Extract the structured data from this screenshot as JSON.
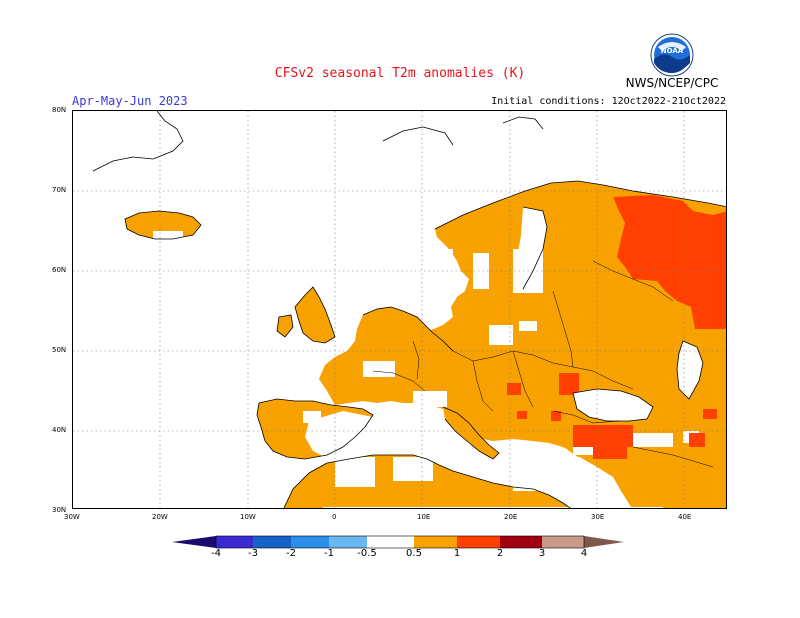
{
  "header": {
    "title": "CFSv2 seasonal T2m anomalies (K)",
    "period": "Apr-May-Jun 2023",
    "initial_conditions": "Initial conditions: 12Oct2022-21Oct2022",
    "agency": "NWS/NCEP/CPC",
    "logo_text": "NOAA"
  },
  "map": {
    "lat_labels": [
      "80N",
      "70N",
      "60N",
      "50N",
      "40N",
      "30N"
    ],
    "lon_labels": [
      "30W",
      "20W",
      "10W",
      "0",
      "10E",
      "20E",
      "30E",
      "40E"
    ],
    "grid": "dotted"
  },
  "legend": {
    "labels": [
      "-4",
      "-3",
      "-2",
      "-1",
      "-0.5",
      "0.5",
      "1",
      "2",
      "3",
      "4"
    ],
    "colors": {
      "below_-4": "#1a0a70",
      "-4_-3": "#3a2ad0",
      "-3_-2": "#1463c8",
      "-2_-1": "#2b8ee8",
      "-1_-0.5": "#6bb8f0",
      "-0.5_0.5": "#ffffff",
      "0.5_1": "#f7a200",
      "1_2": "#ff4000",
      "2_3": "#a00010",
      "3_4": "#c89a8a",
      "above_4": "#80584a"
    }
  }
}
